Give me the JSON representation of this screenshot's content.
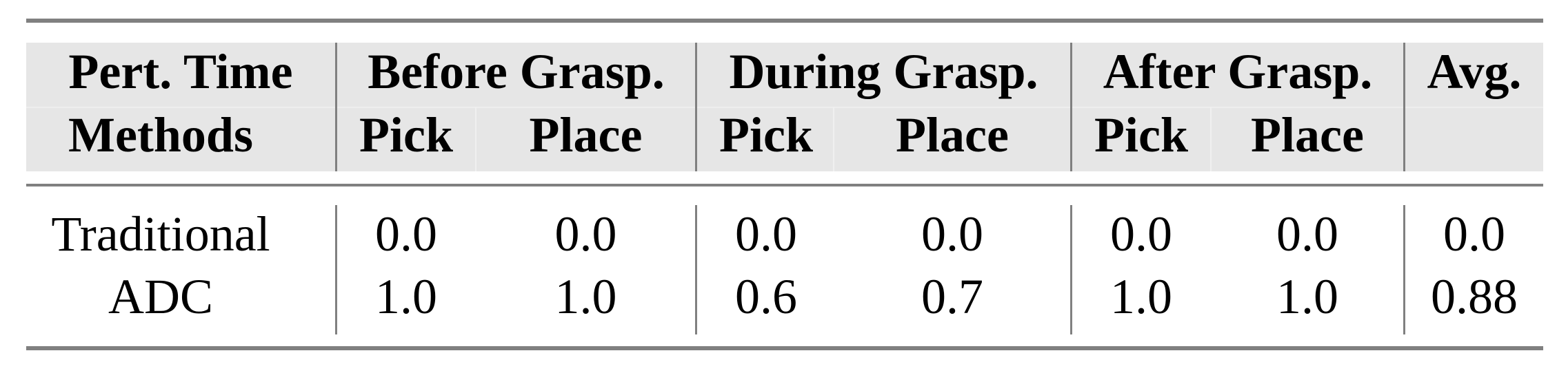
{
  "header": {
    "row1": [
      "Pert. Time",
      "Before Grasp.",
      "During Grasp.",
      "After Grasp.",
      "Avg."
    ],
    "row2": [
      "Methods",
      "Pick",
      "Place",
      "Pick",
      "Place",
      "Pick",
      "Place",
      ""
    ]
  },
  "rows": [
    {
      "method": "Traditional",
      "values": [
        "0.0",
        "0.0",
        "0.0",
        "0.0",
        "0.0",
        "0.0",
        "0.0"
      ]
    },
    {
      "method": "ADC",
      "values": [
        "1.0",
        "1.0",
        "0.6",
        "0.7",
        "1.0",
        "1.0",
        "0.88"
      ]
    }
  ],
  "colors": {
    "rule": "#808080",
    "header_bg": "#e6e6e6"
  }
}
